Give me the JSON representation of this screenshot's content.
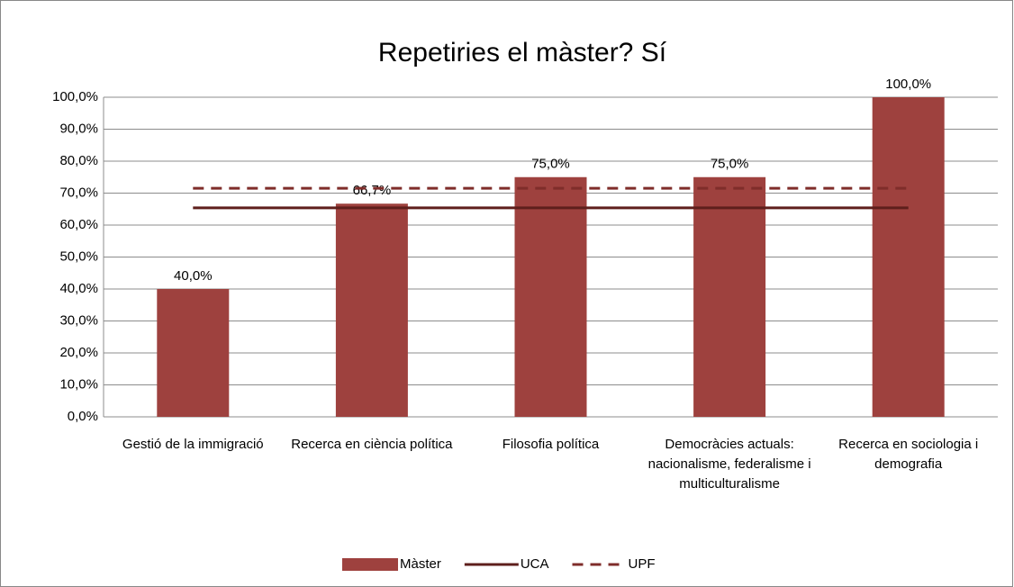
{
  "chart_data": {
    "type": "bar",
    "title": "Repetiries el màster? Sí",
    "categories": [
      "Gestió de la immigració",
      "Recerca en ciència política",
      "Filosofia política",
      "Democràcies actuals: nacionalisme, federalisme i multiculturalisme",
      "Recerca en sociologia i demografia"
    ],
    "series": [
      {
        "name": "Màster",
        "type": "bar",
        "color": "#9e413e",
        "values": [
          40,
          66.7,
          75,
          75,
          100
        ],
        "value_labels": [
          "40,0%",
          "66,7%",
          "75,0%",
          "75,0%",
          "100,0%"
        ]
      },
      {
        "name": "UCA",
        "type": "line",
        "color": "#5e1f1c",
        "dash": false,
        "values": [
          65.4,
          65.4,
          65.4,
          65.4,
          65.4
        ]
      },
      {
        "name": "UPF",
        "type": "line",
        "color": "#7f2d2a",
        "dash": true,
        "values": [
          71.5,
          71.5,
          71.5,
          71.5,
          71.5
        ]
      }
    ],
    "ylim": [
      0,
      100
    ],
    "yticks": [
      {
        "value": 0,
        "label": "0,0%"
      },
      {
        "value": 10,
        "label": "10,0%"
      },
      {
        "value": 20,
        "label": "20,0%"
      },
      {
        "value": 30,
        "label": "30,0%"
      },
      {
        "value": 40,
        "label": "40,0%"
      },
      {
        "value": 50,
        "label": "50,0%"
      },
      {
        "value": 60,
        "label": "60,0%"
      },
      {
        "value": 70,
        "label": "70,0%"
      },
      {
        "value": 80,
        "label": "80,0%"
      },
      {
        "value": 90,
        "label": "90,0%"
      },
      {
        "value": 100,
        "label": "100,0%"
      }
    ],
    "grid": true,
    "legend": "bottom"
  }
}
